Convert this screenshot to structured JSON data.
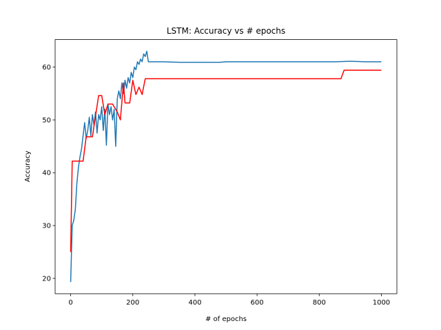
{
  "chart_data": {
    "type": "line",
    "title": "LSTM: Accuracy vs # epochs",
    "x_label": "# of epochs",
    "y_label": "Accuracy",
    "xlim": [
      -50,
      1050
    ],
    "xticks": [
      0,
      200,
      400,
      600,
      800,
      1000
    ],
    "ylim": [
      17.1,
      65.2
    ],
    "yticks": [
      20,
      30,
      40,
      50,
      60
    ],
    "series": [
      {
        "color": "#1f77b4",
        "x": [
          0,
          5,
          10,
          15,
          20,
          25,
          30,
          35,
          40,
          45,
          50,
          55,
          60,
          65,
          70,
          75,
          80,
          85,
          90,
          95,
          100,
          105,
          110,
          115,
          120,
          125,
          130,
          135,
          140,
          145,
          150,
          155,
          160,
          165,
          170,
          175,
          180,
          185,
          190,
          195,
          200,
          205,
          210,
          215,
          220,
          225,
          230,
          235,
          240,
          245,
          250,
          300,
          350,
          400,
          450,
          480,
          500,
          550,
          600,
          700,
          800,
          850,
          900,
          950,
          1000
        ],
        "values": [
          19.3,
          30,
          31,
          33,
          38,
          41,
          43,
          44.5,
          47,
          49.5,
          46.5,
          48,
          50.5,
          47,
          51,
          49,
          51.5,
          47.5,
          51,
          50,
          52.5,
          48,
          52,
          45.2,
          53,
          51,
          52.5,
          50,
          52,
          45,
          54,
          55.5,
          54,
          57,
          55,
          57.5,
          56,
          58,
          57,
          59,
          58,
          60,
          59.5,
          61,
          60.5,
          61.5,
          61,
          62.5,
          62,
          63,
          61,
          61,
          60.9,
          60.9,
          60.9,
          60.9,
          61,
          61,
          61,
          61,
          61,
          61,
          61.1,
          61,
          61
        ]
      },
      {
        "color": "red",
        "x": [
          0,
          5,
          40,
          50,
          70,
          90,
          100,
          110,
          120,
          135,
          150,
          160,
          170,
          175,
          190,
          200,
          210,
          220,
          230,
          240,
          870,
          880,
          1000
        ],
        "values": [
          25,
          42.2,
          42.2,
          46.8,
          46.8,
          54.6,
          54.6,
          51,
          53,
          53,
          51.5,
          50,
          57,
          53.2,
          53.2,
          57.5,
          54.8,
          56.2,
          54.8,
          57.8,
          57.8,
          59.4,
          59.4
        ]
      }
    ]
  }
}
